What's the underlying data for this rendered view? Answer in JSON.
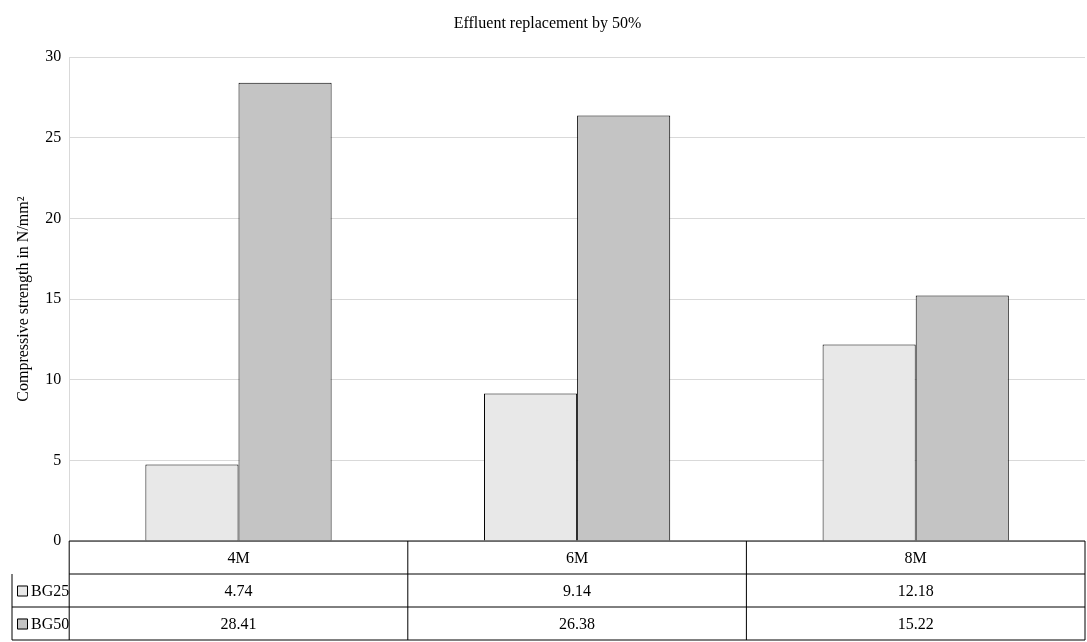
{
  "chart_data": {
    "type": "bar",
    "title": "Effluent replacement by 50%",
    "ylabel": "Compressive strength in N/mm²",
    "categories": [
      "4M",
      "6M",
      "8M"
    ],
    "series": [
      {
        "name": "BG25",
        "color": "#e8e8e8",
        "values": [
          4.74,
          9.14,
          12.18
        ]
      },
      {
        "name": "BG50",
        "color": "#c4c4c4",
        "values": [
          28.41,
          26.38,
          15.22
        ]
      }
    ],
    "ylim": [
      0,
      30
    ],
    "yticks": [
      0,
      5,
      10,
      15,
      20,
      25,
      30
    ],
    "grid": "y",
    "legend": "bottom",
    "data_labels": true
  }
}
